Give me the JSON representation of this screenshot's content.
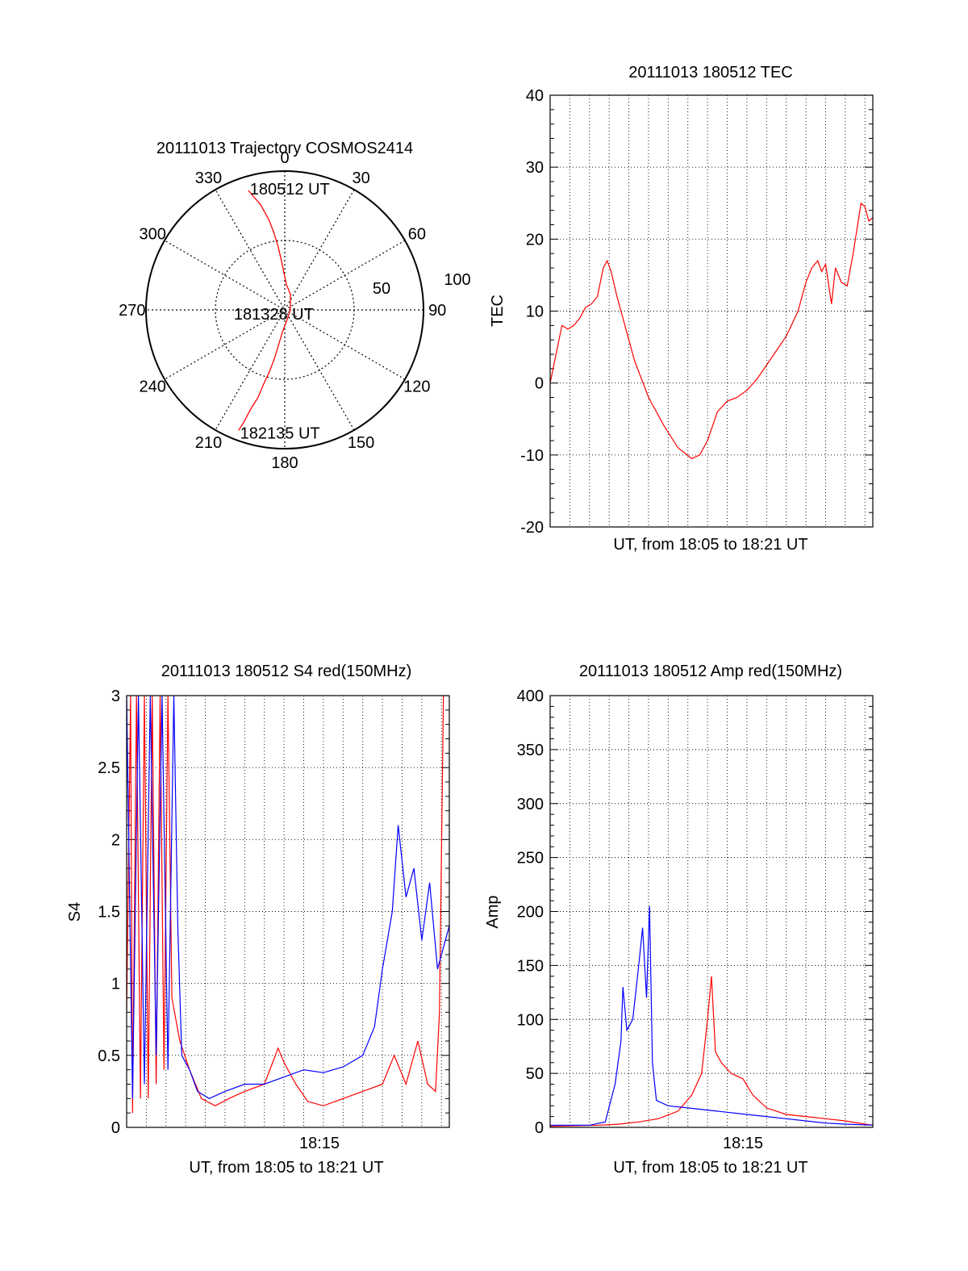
{
  "chart_data": [
    {
      "id": "trajectory",
      "type": "polar",
      "title": "20111013 Trajectory COSMOS2414",
      "angle_labels": [
        "0",
        "30",
        "60",
        "90",
        "120",
        "150",
        "180",
        "210",
        "240",
        "270",
        "300",
        "330"
      ],
      "radial_labels": [
        "50",
        "100"
      ],
      "radial_max": 100,
      "grid": true,
      "series": [
        {
          "color": "#ff0000",
          "points": [
            [
              343,
              90
            ],
            [
              347,
              78
            ],
            [
              350,
              66
            ],
            [
              352,
              56
            ],
            [
              354,
              46
            ],
            [
              356,
              36
            ],
            [
              359,
              26
            ],
            [
              4,
              18
            ],
            [
              20,
              12
            ],
            [
              90,
              4
            ],
            [
              170,
              8
            ],
            [
              186,
              16
            ],
            [
              190,
              26
            ],
            [
              192,
              36
            ],
            [
              194,
              46
            ],
            [
              196,
              56
            ],
            [
              197,
              66
            ],
            [
              199,
              76
            ],
            [
              200,
              86
            ],
            [
              201,
              93
            ]
          ]
        }
      ],
      "annotations": [
        {
          "text": "180512 UT",
          "at": [
            343,
            90
          ]
        },
        {
          "text": "181328 UT",
          "at": [
            90,
            4
          ]
        },
        {
          "text": "182135 UT",
          "at": [
            201,
            93
          ]
        }
      ]
    },
    {
      "id": "tec",
      "type": "line",
      "title": "20111013 180512 TEC",
      "ylabel": "TEC",
      "xlabel": "UT, from 18:05 to 18:21 UT",
      "x_unit": "minutes after 18:05:12 UT",
      "xlim": [
        0,
        16.4
      ],
      "ylim": [
        -20,
        40
      ],
      "yticks": [
        "-20",
        "-10",
        "0",
        "10",
        "20",
        "30",
        "40"
      ],
      "grid": true,
      "series": [
        {
          "color": "#ff0000",
          "points": [
            [
              0,
              0
            ],
            [
              0.3,
              4
            ],
            [
              0.6,
              8
            ],
            [
              0.9,
              7.5
            ],
            [
              1.2,
              8
            ],
            [
              1.5,
              9
            ],
            [
              1.8,
              10.5
            ],
            [
              2.1,
              11
            ],
            [
              2.4,
              12
            ],
            [
              2.7,
              16
            ],
            [
              2.9,
              17
            ],
            [
              3.1,
              15.5
            ],
            [
              3.4,
              12
            ],
            [
              3.8,
              8
            ],
            [
              4.3,
              3
            ],
            [
              5,
              -2
            ],
            [
              5.8,
              -6
            ],
            [
              6.5,
              -9
            ],
            [
              7.2,
              -10.5
            ],
            [
              7.6,
              -10
            ],
            [
              8,
              -8
            ],
            [
              8.5,
              -4
            ],
            [
              9,
              -2.5
            ],
            [
              9.5,
              -2
            ],
            [
              10,
              -1
            ],
            [
              10.5,
              0.5
            ],
            [
              11,
              2.5
            ],
            [
              11.5,
              4.5
            ],
            [
              12,
              6.5
            ],
            [
              12.6,
              10
            ],
            [
              13,
              14
            ],
            [
              13.3,
              16
            ],
            [
              13.6,
              17
            ],
            [
              13.8,
              15.5
            ],
            [
              14,
              16.5
            ],
            [
              14.3,
              11
            ],
            [
              14.5,
              16
            ],
            [
              14.8,
              14
            ],
            [
              15.1,
              13.5
            ],
            [
              15.4,
              18
            ],
            [
              15.8,
              25
            ],
            [
              16,
              24.5
            ],
            [
              16.2,
              22.5
            ],
            [
              16.4,
              23
            ]
          ]
        }
      ]
    },
    {
      "id": "s4",
      "type": "line",
      "title": "20111013 180512 S4 red(150MHz)",
      "ylabel": "S4",
      "xlabel": "UT, from 18:05 to 18:21 UT",
      "xtick_labels": [
        {
          "value": 9.8,
          "label": "18:15"
        }
      ],
      "x_unit": "minutes after 18:05:12 UT",
      "xlim": [
        0,
        16.4
      ],
      "ylim": [
        0,
        3
      ],
      "yticks": [
        "0",
        "0.5",
        "1",
        "1.5",
        "2",
        "2.5",
        "3"
      ],
      "grid": true,
      "series": [
        {
          "color": "#ff0000",
          "points": [
            [
              0,
              0.8
            ],
            [
              0.2,
              3
            ],
            [
              0.3,
              0.1
            ],
            [
              0.5,
              3
            ],
            [
              0.7,
              0.2
            ],
            [
              0.9,
              3
            ],
            [
              1.1,
              0.2
            ],
            [
              1.3,
              3
            ],
            [
              1.5,
              0.3
            ],
            [
              1.7,
              3
            ],
            [
              1.9,
              0.4
            ],
            [
              2.1,
              3
            ],
            [
              2.3,
              0.9
            ],
            [
              2.7,
              0.6
            ],
            [
              3.2,
              0.4
            ],
            [
              3.8,
              0.2
            ],
            [
              4.5,
              0.15
            ],
            [
              5.2,
              0.2
            ],
            [
              6,
              0.25
            ],
            [
              7,
              0.3
            ],
            [
              7.7,
              0.55
            ],
            [
              8,
              0.45
            ],
            [
              8.6,
              0.3
            ],
            [
              9.2,
              0.18
            ],
            [
              10,
              0.15
            ],
            [
              11,
              0.2
            ],
            [
              12,
              0.25
            ],
            [
              13,
              0.3
            ],
            [
              13.6,
              0.5
            ],
            [
              14.2,
              0.3
            ],
            [
              14.8,
              0.6
            ],
            [
              15.3,
              0.3
            ],
            [
              15.7,
              0.25
            ],
            [
              15.9,
              0.8
            ],
            [
              16.1,
              3
            ],
            [
              16.4,
              3
            ]
          ]
        },
        {
          "color": "#0000ff",
          "points": [
            [
              0,
              3
            ],
            [
              0.3,
              0.2
            ],
            [
              0.6,
              3
            ],
            [
              0.9,
              0.3
            ],
            [
              1.2,
              3
            ],
            [
              1.5,
              0.5
            ],
            [
              1.8,
              3
            ],
            [
              2.1,
              0.4
            ],
            [
              2.4,
              3
            ],
            [
              2.6,
              1.4
            ],
            [
              2.8,
              0.5
            ],
            [
              3.2,
              0.4
            ],
            [
              3.6,
              0.25
            ],
            [
              4.2,
              0.2
            ],
            [
              5,
              0.25
            ],
            [
              6,
              0.3
            ],
            [
              7,
              0.3
            ],
            [
              8,
              0.35
            ],
            [
              9,
              0.4
            ],
            [
              10,
              0.38
            ],
            [
              11,
              0.42
            ],
            [
              12,
              0.5
            ],
            [
              12.6,
              0.7
            ],
            [
              13,
              1.1
            ],
            [
              13.5,
              1.5
            ],
            [
              13.8,
              2.1
            ],
            [
              14.2,
              1.6
            ],
            [
              14.6,
              1.8
            ],
            [
              15,
              1.3
            ],
            [
              15.4,
              1.7
            ],
            [
              15.8,
              1.1
            ],
            [
              16.4,
              1.4
            ]
          ]
        }
      ]
    },
    {
      "id": "amp",
      "type": "line",
      "title": "20111013 180512 Amp red(150MHz)",
      "ylabel": "Amp",
      "xlabel": "UT, from 18:05 to 18:21 UT",
      "xtick_labels": [
        {
          "value": 9.8,
          "label": "18:15"
        }
      ],
      "x_unit": "minutes after 18:05:12 UT",
      "xlim": [
        0,
        16.4
      ],
      "ylim": [
        0,
        400
      ],
      "yticks": [
        "0",
        "50",
        "100",
        "150",
        "200",
        "250",
        "300",
        "350",
        "400"
      ],
      "grid": true,
      "series": [
        {
          "color": "#ff0000",
          "points": [
            [
              0,
              1
            ],
            [
              2.5,
              2
            ],
            [
              3.5,
              3
            ],
            [
              4.5,
              5
            ],
            [
              5.5,
              8
            ],
            [
              6.5,
              15
            ],
            [
              7.2,
              30
            ],
            [
              7.7,
              50
            ],
            [
              8,
              100
            ],
            [
              8.2,
              140
            ],
            [
              8.4,
              70
            ],
            [
              8.7,
              60
            ],
            [
              9.2,
              50
            ],
            [
              9.8,
              45
            ],
            [
              10.3,
              30
            ],
            [
              11,
              18
            ],
            [
              12,
              12
            ],
            [
              13,
              10
            ],
            [
              14,
              8
            ],
            [
              15,
              6
            ],
            [
              16,
              3
            ],
            [
              16.4,
              2
            ]
          ]
        },
        {
          "color": "#0000ff",
          "points": [
            [
              0,
              2
            ],
            [
              2,
              2
            ],
            [
              2.8,
              5
            ],
            [
              3.3,
              40
            ],
            [
              3.6,
              80
            ],
            [
              3.7,
              130
            ],
            [
              3.9,
              90
            ],
            [
              4.2,
              100
            ],
            [
              4.5,
              150
            ],
            [
              4.7,
              185
            ],
            [
              4.9,
              120
            ],
            [
              5.05,
              205
            ],
            [
              5.2,
              60
            ],
            [
              5.4,
              25
            ],
            [
              6,
              20
            ],
            [
              7,
              18
            ],
            [
              8,
              16
            ],
            [
              9,
              14
            ],
            [
              10,
              12
            ],
            [
              11,
              10
            ],
            [
              12,
              8
            ],
            [
              13,
              6
            ],
            [
              14,
              4
            ],
            [
              15,
              3
            ],
            [
              16.4,
              2
            ]
          ]
        }
      ]
    }
  ]
}
